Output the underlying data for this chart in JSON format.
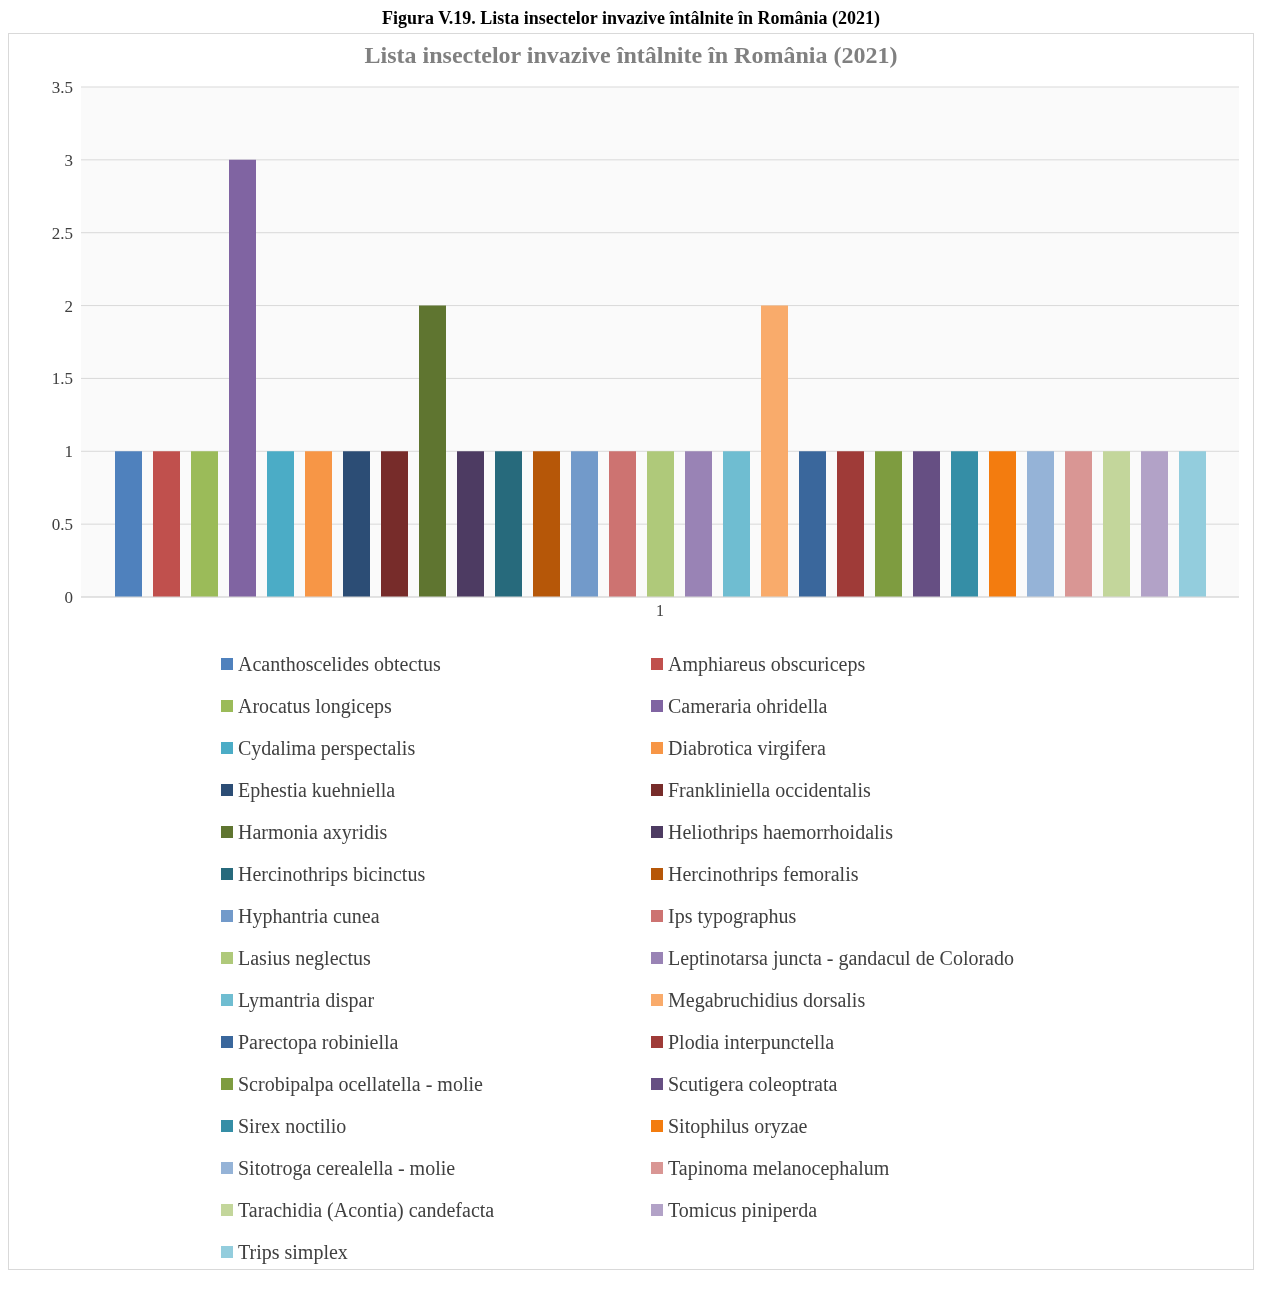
{
  "chart_data": {
    "type": "bar",
    "title": "Lista insectelor invazive întâlnite în România (2021)",
    "annotations": [
      "Figura V.19. Lista insectelor invazive întâlnite în România (2021)"
    ],
    "categories": [
      "1"
    ],
    "series": [
      {
        "name": "Acanthoscelides obtectus",
        "color": "#4f81bd",
        "values": [
          1
        ]
      },
      {
        "name": "Amphiareus obscuriceps",
        "color": "#c0504d",
        "values": [
          1
        ]
      },
      {
        "name": "Arocatus longiceps",
        "color": "#9bbb59",
        "values": [
          1
        ]
      },
      {
        "name": "Cameraria ohridella",
        "color": "#8064a2",
        "values": [
          3
        ]
      },
      {
        "name": "Cydalima perspectalis",
        "color": "#4bacc6",
        "values": [
          1
        ]
      },
      {
        "name": "Diabrotica virgifera",
        "color": "#f79646",
        "values": [
          1
        ]
      },
      {
        "name": "Ephestia kuehniella",
        "color": "#2c4d75",
        "values": [
          1
        ]
      },
      {
        "name": "Frankliniella occidentalis",
        "color": "#772c2a",
        "values": [
          1
        ]
      },
      {
        "name": "Harmonia axyridis",
        "color": "#5f7530",
        "values": [
          2
        ]
      },
      {
        "name": "Heliothrips haemorrhoidalis",
        "color": "#4d3b62",
        "values": [
          1
        ]
      },
      {
        "name": "Hercinothrips bicinctus",
        "color": "#276a7c",
        "values": [
          1
        ]
      },
      {
        "name": "Hercinothrips femoralis",
        "color": "#b65708",
        "values": [
          1
        ]
      },
      {
        "name": "Hyphantria cunea",
        "color": "#729aca",
        "values": [
          1
        ]
      },
      {
        "name": "Ips typographus",
        "color": "#cd7371",
        "values": [
          1
        ]
      },
      {
        "name": "Lasius neglectus",
        "color": "#afc97a",
        "values": [
          1
        ]
      },
      {
        "name": "Leptinotarsa juncta - gandacul de Colorado",
        "color": "#9983b5",
        "values": [
          1
        ]
      },
      {
        "name": "Lymantria dispar",
        "color": "#6fbdd1",
        "values": [
          1
        ]
      },
      {
        "name": "Megabruchidius dorsalis",
        "color": "#f9ab6b",
        "values": [
          2
        ]
      },
      {
        "name": "Parectopa robiniella",
        "color": "#3a679c",
        "values": [
          1
        ]
      },
      {
        "name": "Plodia interpunctella",
        "color": "#9f3b38",
        "values": [
          1
        ]
      },
      {
        "name": "Scrobipalpa ocellatella - molie",
        "color": "#7e9c40",
        "values": [
          1
        ]
      },
      {
        "name": "Scutigera coleoptrata",
        "color": "#664f83",
        "values": [
          1
        ]
      },
      {
        "name": "Sirex noctilio",
        "color": "#358ea6",
        "values": [
          1
        ]
      },
      {
        "name": "Sitophilus oryzae",
        "color": "#f37c0f",
        "values": [
          1
        ]
      },
      {
        "name": "Sitotroga cerealella - molie",
        "color": "#95b3d7",
        "values": [
          1
        ]
      },
      {
        "name": "Tapinoma melanocephalum",
        "color": "#d99694",
        "values": [
          1
        ]
      },
      {
        "name": "Tarachidia (Acontia) candefacta",
        "color": "#c3d69b",
        "values": [
          1
        ]
      },
      {
        "name": "Tomicus piniperda",
        "color": "#b2a2c7",
        "values": [
          1
        ]
      },
      {
        "name": "Trips simplex",
        "color": "#93cddd",
        "values": [
          1
        ]
      }
    ],
    "ylim": [
      0,
      3.5
    ],
    "yticks": [
      0,
      0.5,
      1,
      1.5,
      2,
      2.5,
      3,
      3.5
    ],
    "grid": "y",
    "legend": "bottom"
  }
}
